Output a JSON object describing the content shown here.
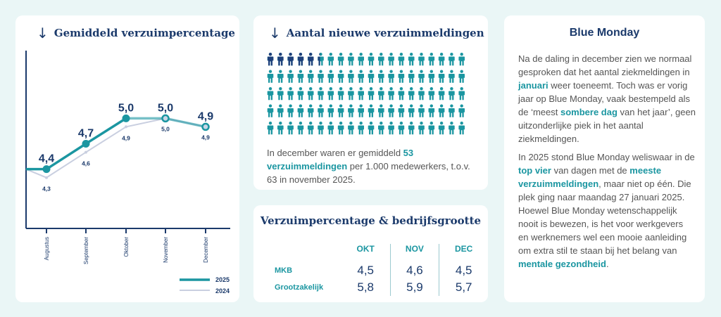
{
  "chart_data": {
    "type": "line",
    "title": "Gemiddeld verzuimpercentage",
    "title_icon": "arrow-down-icon",
    "categories": [
      "Augustus",
      "September",
      "Oktober",
      "November",
      "December"
    ],
    "series": [
      {
        "name": "2025",
        "values": [
          4.4,
          4.7,
          5.0,
          5.0,
          4.9
        ],
        "labels": [
          "4,4",
          "4,7",
          "5,0",
          "5,0",
          "4,9"
        ],
        "color": "#1b96a1"
      },
      {
        "name": "2024",
        "values": [
          4.3,
          4.6,
          4.9,
          5.0,
          4.9
        ],
        "labels": [
          "4,3",
          "4,6",
          "4,9",
          "5,0",
          "4,9"
        ],
        "color": "#c9cfe0"
      }
    ],
    "ylim": [
      3.7,
      5.8
    ],
    "xlabel": "",
    "ylabel": "",
    "legend": "bottom-right",
    "grid": false
  },
  "meldingen": {
    "title": "Aantal nieuwe verzuimmeldingen",
    "title_icon": "arrow-down-icon",
    "pictogram": {
      "total": 100,
      "highlighted": 5.3,
      "dark_color": "#1e3f7a",
      "light_color": "#1b96a1"
    },
    "text": [
      "In december waren er gemiddeld ",
      "53 verzuimmeldingen",
      " per 1.000 medewerkers, t.o.v. 63 in november 2025."
    ]
  },
  "table": {
    "title": "Verzuimpercentage & bedrijfsgrootte",
    "columns": [
      "OKT",
      "NOV",
      "DEC"
    ],
    "rows": [
      {
        "label": "MKB",
        "values": [
          "4,5",
          "4,6",
          "4,5"
        ]
      },
      {
        "label": "Grootzakelijk",
        "values": [
          "5,8",
          "5,9",
          "5,7"
        ]
      }
    ]
  },
  "blue_monday": {
    "title": "Blue Monday",
    "p1": [
      "Na de daling in december zien we normaal gesproken dat het aantal ziekmeldingen in ",
      "januari",
      " weer toeneemt. Toch was er vorig jaar op Blue Monday, vaak bestempeld als de ‘meest ",
      "sombere dag",
      " van het jaar’, geen uitzonderlijke piek in het aantal ziekmeldingen."
    ],
    "p2": [
      "In 2025 stond Blue Monday weliswaar in de ",
      "top vier",
      " van dagen met de ",
      "meeste verzuimmeldingen",
      ", maar niet op één. Die plek ging naar maandag 27 januari 2025. Hoewel Blue Monday wetenschappelijk nooit is bewezen, is het voor werkgevers en werknemers wel een mooie aanleiding om extra stil te staan bij het belang van ",
      "mentale gezondheid",
      "."
    ]
  },
  "colors": {
    "navy": "#1b3a6b",
    "teal": "#1b96a1",
    "background": "#eaf6f6"
  }
}
